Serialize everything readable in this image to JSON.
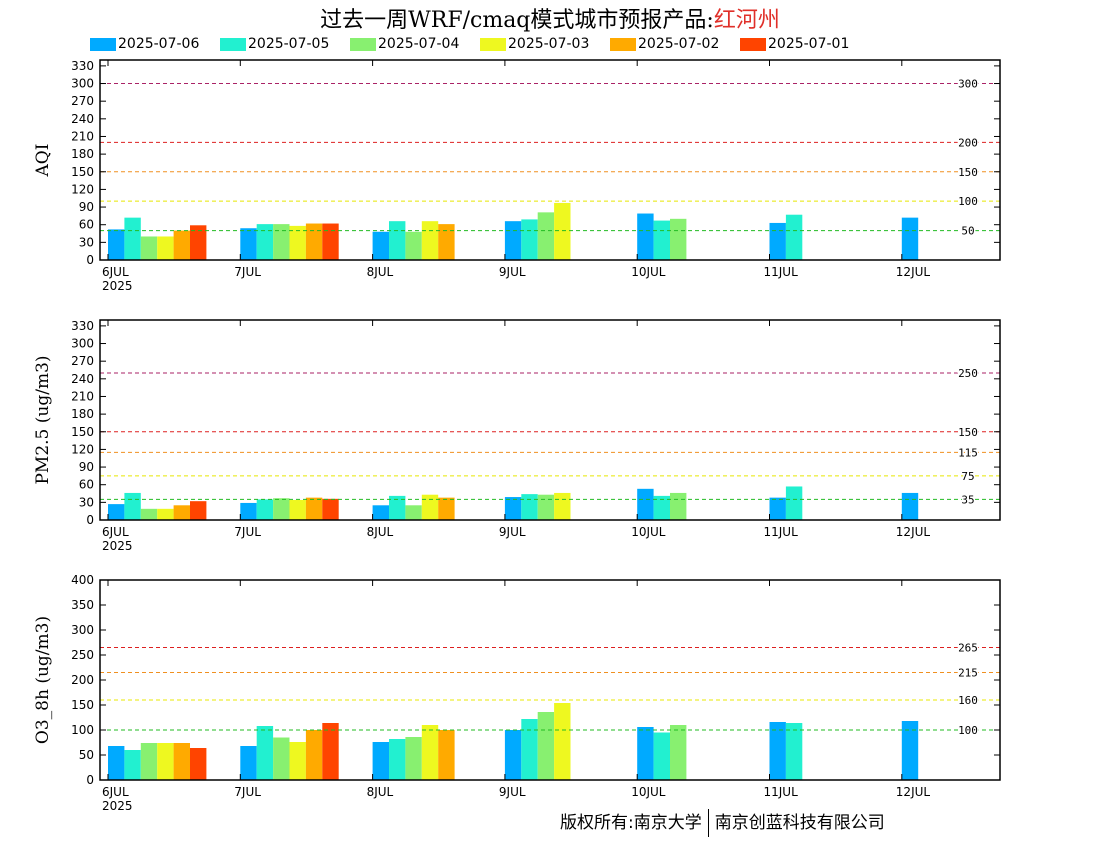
{
  "title": {
    "main": "过去一周WRF/cmaq模式城市预报产品:",
    "region": "红河州",
    "region_color": "#e0302a"
  },
  "legend": [
    {
      "label": "2025-07-06",
      "color": "#00aaff"
    },
    {
      "label": "2025-07-05",
      "color": "#22f0d0"
    },
    {
      "label": "2025-07-04",
      "color": "#88f070"
    },
    {
      "label": "2025-07-03",
      "color": "#eef820"
    },
    {
      "label": "2025-07-02",
      "color": "#ffaa00"
    },
    {
      "label": "2025-07-01",
      "color": "#ff4400"
    }
  ],
  "footer": {
    "left": "版权所有:南京大学",
    "right": "南京创蓝科技有限公司"
  },
  "chart_data": [
    {
      "type": "bar",
      "ylabel": "AQI",
      "ylim": [
        0,
        340
      ],
      "yticks": [
        0,
        30,
        60,
        90,
        120,
        150,
        180,
        210,
        240,
        270,
        300,
        330
      ],
      "categories": [
        "6JUL",
        "7JUL",
        "8JUL",
        "9JUL",
        "10JUL",
        "11JUL",
        "12JUL"
      ],
      "year_label": "2025",
      "thresholds": [
        {
          "value": 50,
          "label": "50",
          "color": "#22bb22"
        },
        {
          "value": 100,
          "label": "100",
          "color": "#e8e800"
        },
        {
          "value": 150,
          "label": "150",
          "color": "#f09020"
        },
        {
          "value": 200,
          "label": "200",
          "color": "#dd2020"
        },
        {
          "value": 300,
          "label": "300",
          "color": "#aa2266"
        }
      ],
      "series": [
        {
          "name": "2025-07-06",
          "values": [
            52,
            54,
            48,
            66,
            79,
            63,
            72
          ]
        },
        {
          "name": "2025-07-05",
          "values": [
            72,
            61,
            66,
            69,
            67,
            77,
            null
          ]
        },
        {
          "name": "2025-07-04",
          "values": [
            40,
            61,
            48,
            81,
            70,
            null,
            null
          ]
        },
        {
          "name": "2025-07-03",
          "values": [
            40,
            58,
            66,
            97,
            null,
            null,
            null
          ]
        },
        {
          "name": "2025-07-02",
          "values": [
            50,
            62,
            61,
            null,
            null,
            null,
            null
          ]
        },
        {
          "name": "2025-07-01",
          "values": [
            59,
            62,
            null,
            null,
            null,
            null,
            null
          ]
        }
      ]
    },
    {
      "type": "bar",
      "ylabel": "PM2.5 (ug/m3)",
      "ylim": [
        0,
        340
      ],
      "yticks": [
        0,
        30,
        60,
        90,
        120,
        150,
        180,
        210,
        240,
        270,
        300,
        330
      ],
      "categories": [
        "6JUL",
        "7JUL",
        "8JUL",
        "9JUL",
        "10JUL",
        "11JUL",
        "12JUL"
      ],
      "year_label": "2025",
      "thresholds": [
        {
          "value": 35,
          "label": "35",
          "color": "#22bb22"
        },
        {
          "value": 75,
          "label": "75",
          "color": "#e8e800"
        },
        {
          "value": 115,
          "label": "115",
          "color": "#f09020"
        },
        {
          "value": 150,
          "label": "150",
          "color": "#dd2020"
        },
        {
          "value": 250,
          "label": "250",
          "color": "#aa2266"
        }
      ],
      "series": [
        {
          "name": "2025-07-06",
          "values": [
            27,
            29,
            25,
            39,
            53,
            38,
            46
          ]
        },
        {
          "name": "2025-07-05",
          "values": [
            46,
            35,
            41,
            44,
            41,
            57,
            null
          ]
        },
        {
          "name": "2025-07-04",
          "values": [
            19,
            37,
            25,
            43,
            46,
            null,
            null
          ]
        },
        {
          "name": "2025-07-03",
          "values": [
            19,
            34,
            43,
            46,
            null,
            null,
            null
          ]
        },
        {
          "name": "2025-07-02",
          "values": [
            25,
            38,
            38,
            null,
            null,
            null,
            null
          ]
        },
        {
          "name": "2025-07-01",
          "values": [
            32,
            36,
            null,
            null,
            null,
            null,
            null
          ]
        }
      ]
    },
    {
      "type": "bar",
      "ylabel": "O3_8h (ug/m3)",
      "ylim": [
        0,
        400
      ],
      "yticks": [
        0,
        50,
        100,
        150,
        200,
        250,
        300,
        350,
        400
      ],
      "categories": [
        "6JUL",
        "7JUL",
        "8JUL",
        "9JUL",
        "10JUL",
        "11JUL",
        "12JUL"
      ],
      "year_label": "2025",
      "thresholds": [
        {
          "value": 100,
          "label": "100",
          "color": "#22bb22"
        },
        {
          "value": 160,
          "label": "160",
          "color": "#e8e800"
        },
        {
          "value": 215,
          "label": "215",
          "color": "#f09020"
        },
        {
          "value": 265,
          "label": "265",
          "color": "#dd2020"
        }
      ],
      "series": [
        {
          "name": "2025-07-06",
          "values": [
            68,
            68,
            76,
            100,
            106,
            116,
            118
          ]
        },
        {
          "name": "2025-07-05",
          "values": [
            60,
            108,
            82,
            122,
            95,
            114,
            null
          ]
        },
        {
          "name": "2025-07-04",
          "values": [
            74,
            85,
            86,
            136,
            110,
            null,
            null
          ]
        },
        {
          "name": "2025-07-03",
          "values": [
            74,
            76,
            110,
            154,
            null,
            null,
            null
          ]
        },
        {
          "name": "2025-07-02",
          "values": [
            74,
            100,
            100,
            null,
            null,
            null,
            null
          ]
        },
        {
          "name": "2025-07-01",
          "values": [
            64,
            114,
            null,
            null,
            null,
            null,
            null
          ]
        }
      ]
    }
  ]
}
